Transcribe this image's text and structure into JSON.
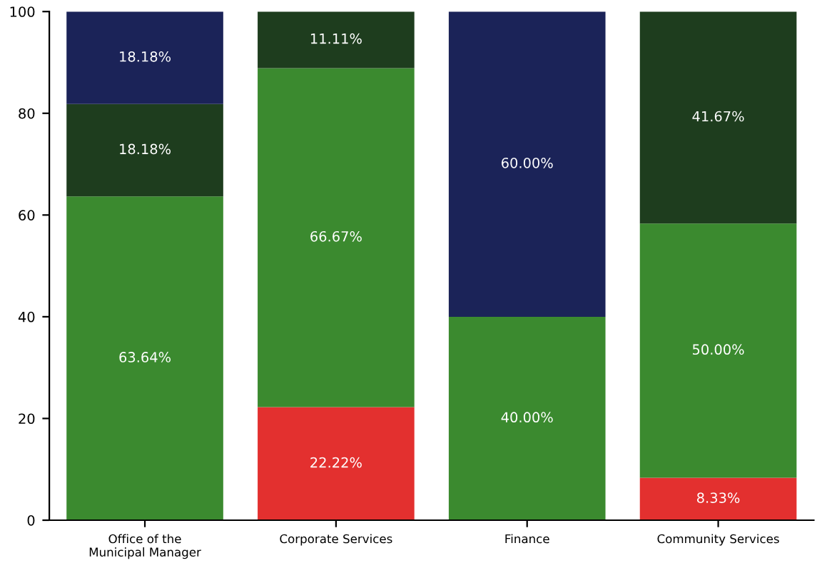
{
  "chart_data": {
    "type": "bar",
    "stacked": true,
    "categories": [
      "Office of the\nMunicipal Manager",
      "Corporate Services",
      "Finance",
      "Community Services"
    ],
    "series": [
      {
        "color": "#e3302f",
        "values": [
          null,
          22.22,
          null,
          8.33
        ],
        "value_labels": [
          null,
          "22.22%",
          null,
          "8.33%"
        ]
      },
      {
        "color": "#3b8a2f",
        "values": [
          63.64,
          66.67,
          40.0,
          50.0
        ],
        "value_labels": [
          "63.64%",
          "66.67%",
          "40.00%",
          "50.00%"
        ]
      },
      {
        "color": "#1e3d1e",
        "values": [
          18.18,
          11.11,
          null,
          41.67
        ],
        "value_labels": [
          "18.18%",
          "11.11%",
          null,
          "41.67%"
        ]
      },
      {
        "color": "#1b2358",
        "values": [
          18.18,
          null,
          60.0,
          null
        ],
        "value_labels": [
          "18.18%",
          null,
          "60.00%",
          null
        ]
      }
    ],
    "ylim": [
      0,
      100
    ],
    "yticks": [
      0,
      20,
      40,
      60,
      80,
      100
    ],
    "grid": false,
    "legend": false
  }
}
